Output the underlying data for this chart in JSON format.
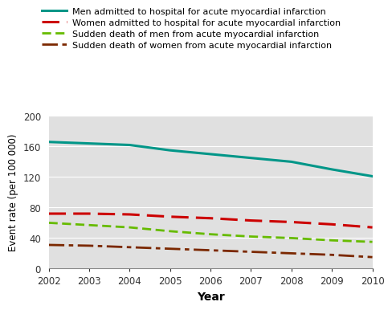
{
  "years": [
    2002,
    2003,
    2004,
    2005,
    2006,
    2007,
    2008,
    2009,
    2010
  ],
  "men_hospital": [
    166,
    164,
    162,
    155,
    150,
    145,
    140,
    130,
    121
  ],
  "women_hospital": [
    72,
    72,
    71,
    68,
    66,
    63,
    61,
    58,
    54
  ],
  "men_sudden": [
    60,
    57,
    54,
    49,
    45,
    42,
    40,
    37,
    35
  ],
  "women_sudden": [
    31,
    30,
    28,
    26,
    24,
    22,
    20,
    18,
    15
  ],
  "ylim": [
    0,
    200
  ],
  "yticks": [
    0,
    40,
    80,
    120,
    160,
    200
  ],
  "xlabel": "Year",
  "ylabel": "Event rate (per 100 000)",
  "color_men_hosp": "#009688",
  "color_women_hosp": "#CC0000",
  "color_men_sudden": "#66BB00",
  "color_women_sudden": "#7B2800",
  "legend_labels": [
    "Men admitted to hospital for acute myocardial infarction",
    "Women admitted to hospital for acute myocardial infarction",
    "Sudden death of men from acute myocardial infarction",
    "Sudden death of women from acute myocardial infarction"
  ],
  "bg_color": "#E0E0E0",
  "fig_bg_color": "#FFFFFF"
}
